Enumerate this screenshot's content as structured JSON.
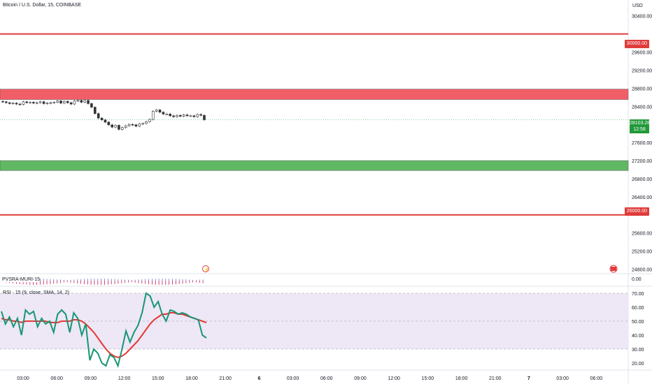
{
  "header": {
    "symbol_title": "Bitcoin / U.S. Dollar, 15, COINBASE",
    "currency": "USD"
  },
  "price_axis": {
    "ticks": [
      "30400.00",
      "29600.00",
      "29200.00",
      "28800.00",
      "28400.00",
      "27600.00",
      "27200.00",
      "26800.00",
      "26400.00",
      "25600.00",
      "25200.00",
      "24800.00"
    ],
    "tick_values": [
      30400,
      29600,
      29200,
      28800,
      28400,
      27600,
      27200,
      26800,
      26400,
      25600,
      25200,
      24800
    ],
    "highlight_30000": "30000.00",
    "highlight_26000": "26000.00",
    "current_price": "28103.28",
    "countdown": "12:58",
    "colors": {
      "resistance": "#e03b3b",
      "current": "#22993a"
    }
  },
  "zones": [
    {
      "name": "supply-zone",
      "from": 28550,
      "to": 28780,
      "color": "#f25e67"
    },
    {
      "name": "demand-zone",
      "from": 26980,
      "to": 27200,
      "color": "#61b863"
    }
  ],
  "levels": [
    {
      "name": "resistance-30000",
      "value": 30000,
      "color": "#e03b3b"
    },
    {
      "name": "support-26000",
      "value": 26000,
      "color": "#e03b3b"
    }
  ],
  "price_range": {
    "min": 24700,
    "max": 30750
  },
  "candles_close": [
    28500,
    28480,
    28460,
    28470,
    28450,
    28440,
    28500,
    28480,
    28490,
    28470,
    28480,
    28500,
    28460,
    28470,
    28480,
    28490,
    28520,
    28470,
    28510,
    28480,
    28450,
    28520,
    28530,
    28490,
    28530,
    28460,
    28380,
    28240,
    28140,
    28100,
    28050,
    27990,
    27940,
    27980,
    27890,
    27930,
    27970,
    28000,
    27990,
    27960,
    28010,
    28020,
    28060,
    28110,
    28290,
    28320,
    28270,
    28230,
    28230,
    28190,
    28170,
    28200,
    28180,
    28210,
    28190,
    28190,
    28170,
    28220,
    28200,
    28103
  ],
  "pvsra_panel": {
    "label": "PVSRA-MURI-15",
    "value": "0.00"
  },
  "rsi_panel": {
    "label": "RSI · 15 (9, close, SMA, 14, 2)",
    "ticks": [
      "70.00",
      "60.00",
      "50.00",
      "40.00",
      "30.00",
      "20.00"
    ],
    "tick_values": [
      70,
      60,
      50,
      40,
      30,
      20
    ],
    "upper_band": 70,
    "middle_band": 50,
    "lower_band": 30,
    "rsi_values": [
      57,
      48,
      53,
      46,
      52,
      40,
      58,
      55,
      57,
      46,
      52,
      48,
      50,
      42,
      55,
      58,
      55,
      42,
      56,
      52,
      40,
      48,
      22,
      30,
      27,
      20,
      18,
      26,
      24,
      18,
      30,
      43,
      35,
      42,
      47,
      56,
      70,
      68,
      60,
      64,
      55,
      50,
      58,
      57,
      55,
      56,
      55,
      53,
      52,
      51,
      40,
      38
    ],
    "rsi_ma_values": [
      52,
      51,
      51,
      50,
      50,
      49,
      50,
      50,
      50,
      50,
      50,
      50,
      49,
      49,
      49,
      50,
      50,
      50,
      51,
      51,
      50,
      48,
      45,
      42,
      38,
      34,
      30,
      27,
      25,
      24,
      25,
      27,
      30,
      33,
      36,
      40,
      44,
      48,
      51,
      53,
      55,
      55,
      56,
      56,
      55,
      55,
      54,
      53,
      52,
      51,
      50,
      49
    ],
    "colors": {
      "rsi": "#179675",
      "ma": "#e53935",
      "band": "#ede7f6"
    }
  },
  "time_axis": [
    "03:00",
    "06:00",
    "09:00",
    "12:00",
    "15:00",
    "18:00",
    "21:00",
    "6",
    "03:00",
    "06:00",
    "09:00",
    "12:00",
    "15:00",
    "18:00",
    "21:00",
    "7",
    "03:00",
    "06:00"
  ]
}
